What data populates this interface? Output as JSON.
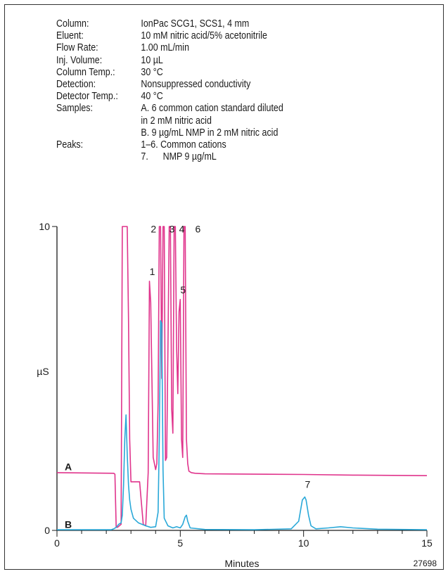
{
  "conditions": [
    {
      "label": "Column:",
      "value": "IonPac SCG1, SCS1, 4 mm"
    },
    {
      "label": "Eluent:",
      "value": "10 mM nitric acid/5% acetonitrile"
    },
    {
      "label": "Flow Rate:",
      "value": "1.00 mL/min"
    },
    {
      "label": "Inj. Volume:",
      "value": "10 µL"
    },
    {
      "label": "Column Temp.:",
      "value": "30 °C"
    },
    {
      "label": "Detection:",
      "value": "Nonsuppressed conductivity"
    },
    {
      "label": "Detector Temp.:",
      "value": "40 °C"
    },
    {
      "label": "Samples:",
      "value": "A. 6 common cation standard diluted"
    },
    {
      "label": "",
      "value": "in 2 mM nitric acid"
    },
    {
      "label": "",
      "value": "B. 9 µg/mL NMP in 2 mM nitric acid"
    },
    {
      "label": "Peaks:",
      "value": "1–6. Common cations"
    },
    {
      "label": "",
      "value": "7.      NMP 9 µg/mL"
    }
  ],
  "figure_id": "27698",
  "colors": {
    "trace_a": "#e0348c",
    "trace_b": "#29a8d8",
    "axis": "#1a1a1a"
  },
  "chart_data": {
    "type": "line",
    "xlabel": "Minutes",
    "ylabel": "µS",
    "xlim": [
      0,
      15
    ],
    "ylim": [
      0,
      10
    ],
    "x_ticks": [
      0,
      5,
      10,
      15
    ],
    "y_ticks": [
      0,
      10
    ],
    "series": [
      {
        "name": "A",
        "x": [
          0,
          2.3,
          2.35,
          2.4,
          2.45,
          2.6,
          2.65,
          2.7,
          2.85,
          2.9,
          2.95,
          3.0,
          3.3,
          3.35,
          3.5,
          3.6,
          3.7,
          3.75,
          3.8,
          3.9,
          4.0,
          4.05,
          4.1,
          4.15,
          4.2,
          4.25,
          4.3,
          4.35,
          4.4,
          4.45,
          4.5,
          4.55,
          4.6,
          4.65,
          4.7,
          4.75,
          4.8,
          4.85,
          4.9,
          4.95,
          5.0,
          5.05,
          5.1,
          5.15,
          5.2,
          5.25,
          5.3,
          5.35,
          5.45,
          5.6,
          6,
          8,
          10,
          12,
          15
        ],
        "y": [
          1.9,
          1.88,
          1.85,
          0.1,
          0.1,
          0.2,
          10.0,
          10.0,
          10.0,
          7.0,
          3.0,
          1.6,
          1.6,
          1.6,
          0.2,
          0.15,
          1.9,
          8.2,
          7.5,
          2.4,
          2.0,
          2.2,
          4.2,
          10.0,
          10.0,
          5.0,
          10.0,
          10.0,
          2.3,
          2.4,
          6.0,
          10.0,
          10.0,
          4.0,
          3.2,
          10.0,
          10.0,
          6.0,
          4.5,
          7.2,
          7.6,
          3.0,
          2.4,
          10.0,
          10.0,
          3.0,
          2.2,
          1.95,
          1.9,
          1.88,
          1.86,
          1.85,
          1.84,
          1.82,
          1.8
        ]
      },
      {
        "name": "B",
        "x": [
          0,
          2.2,
          2.3,
          2.4,
          2.5,
          2.6,
          2.65,
          2.7,
          2.75,
          2.8,
          2.85,
          2.9,
          2.95,
          3.0,
          3.1,
          3.3,
          3.6,
          3.8,
          4.0,
          4.1,
          4.15,
          4.2,
          4.25,
          4.3,
          4.35,
          4.5,
          4.7,
          4.85,
          5.0,
          5.1,
          5.2,
          5.25,
          5.3,
          5.4,
          6,
          8,
          9.5,
          9.8,
          9.95,
          10.05,
          10.1,
          10.2,
          10.3,
          10.5,
          11,
          11.5,
          12,
          13,
          15
        ],
        "y": [
          0.02,
          0.02,
          0.05,
          0.1,
          0.2,
          0.25,
          0.5,
          1.5,
          3.0,
          3.8,
          2.5,
          1.5,
          1.0,
          0.7,
          0.4,
          0.25,
          0.15,
          0.1,
          0.12,
          0.6,
          3.0,
          6.9,
          6.8,
          2.0,
          0.4,
          0.15,
          0.08,
          0.12,
          0.08,
          0.2,
          0.45,
          0.5,
          0.3,
          0.08,
          0.03,
          0.02,
          0.05,
          0.3,
          1.0,
          1.1,
          1.0,
          0.5,
          0.15,
          0.05,
          0.08,
          0.12,
          0.08,
          0.04,
          0.02
        ]
      }
    ],
    "trace_labels": [
      {
        "text": "A",
        "x": 0.2,
        "y": 2.1
      },
      {
        "text": "B",
        "x": 0.2,
        "y": 0.2
      }
    ],
    "annotations": [
      {
        "text": "1",
        "x": 3.75,
        "y": 8.4
      },
      {
        "text": "2",
        "x": 3.8,
        "y": 9.8
      },
      {
        "text": "3",
        "x": 4.55,
        "y": 9.8
      },
      {
        "text": "4",
        "x": 4.95,
        "y": 9.8
      },
      {
        "text": "5",
        "x": 5.0,
        "y": 7.8
      },
      {
        "text": "6",
        "x": 5.6,
        "y": 9.8
      },
      {
        "text": "7",
        "x": 10.05,
        "y": 1.4
      }
    ]
  }
}
